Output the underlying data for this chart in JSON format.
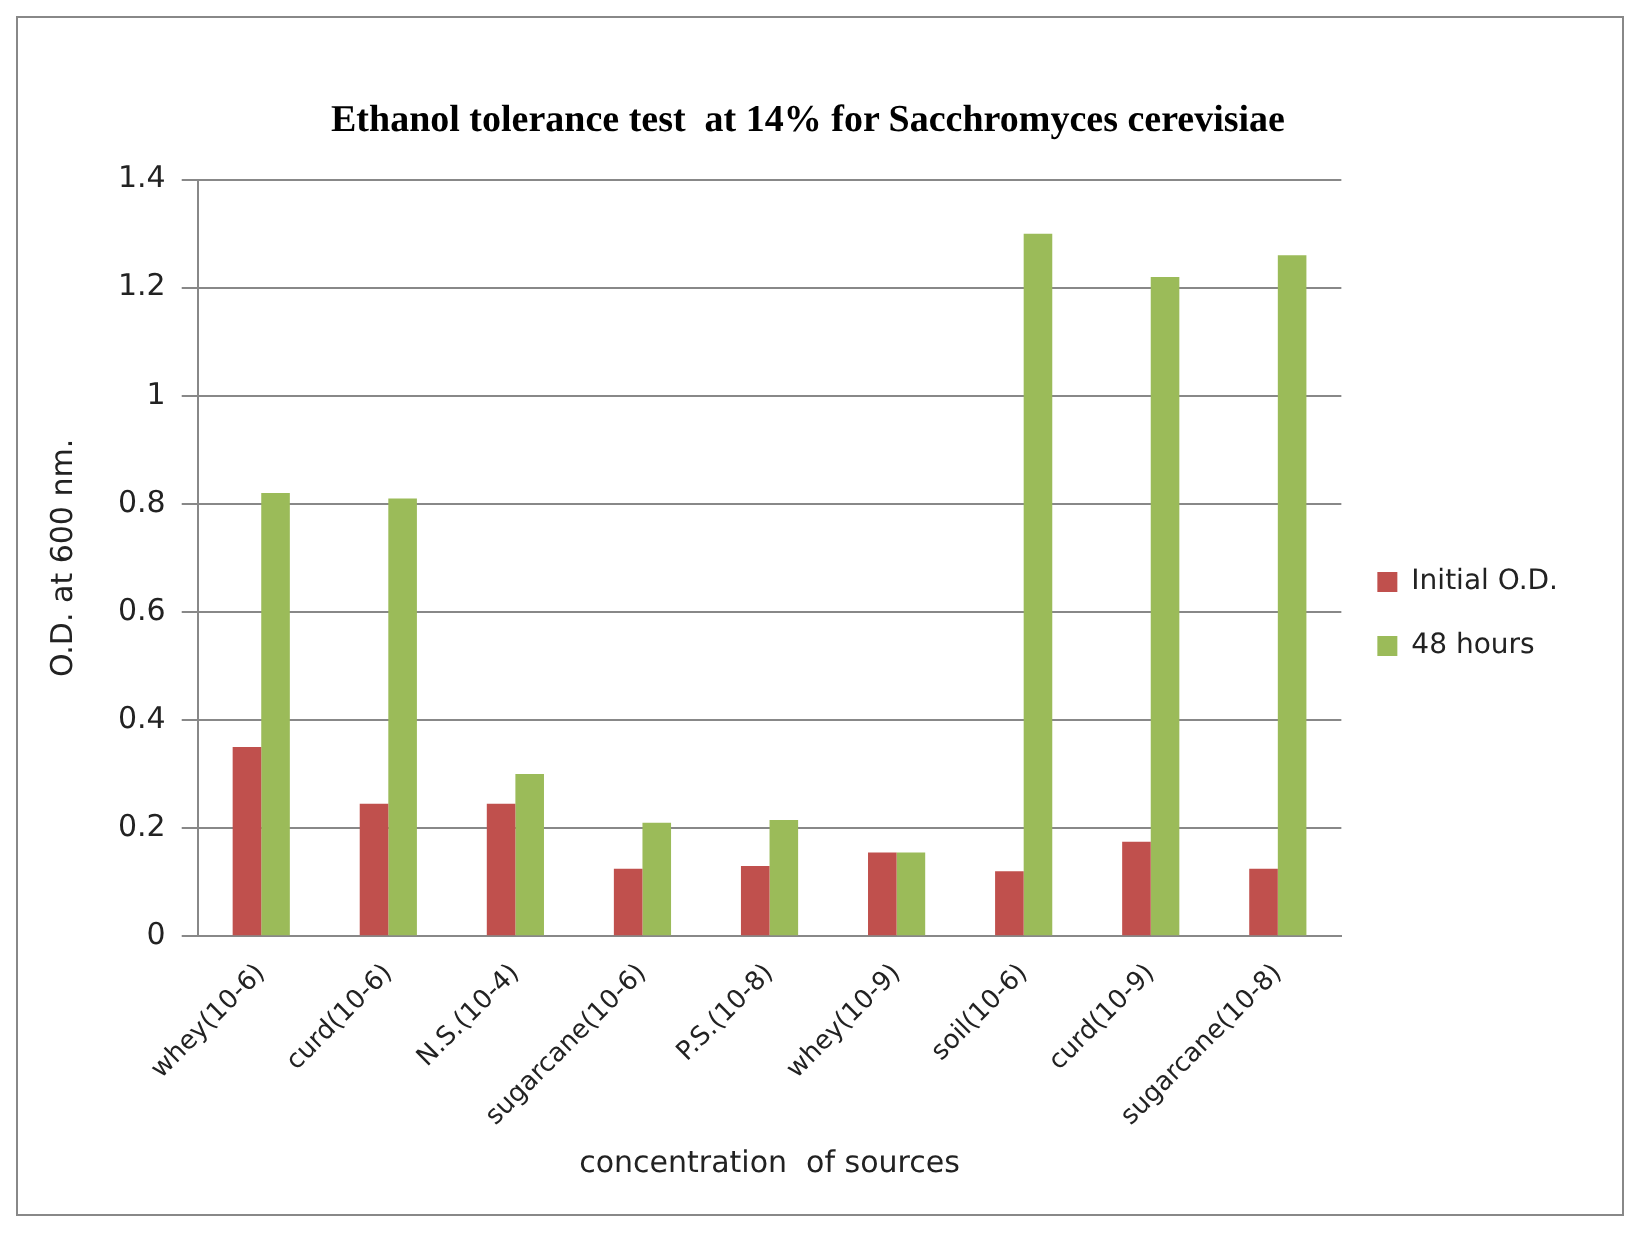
{
  "chart_data": {
    "type": "bar",
    "title": "Ethanol tolerance test  at 14% for Sacchromyces cerevisiae",
    "xlabel": "concentration  of sources",
    "ylabel": "O.D. at 600 nm.",
    "categories": [
      "whey(10-6)",
      "curd(10-6)",
      "N.S.(10-4)",
      "sugarcane(10-6)",
      "P.S.(10-8)",
      "whey(10-9)",
      "soil(10-6)",
      "curd(10-9)",
      "sugarcane(10-8)"
    ],
    "series": [
      {
        "name": "Initial O.D.",
        "color": "#c0504d",
        "values": [
          0.35,
          0.245,
          0.245,
          0.125,
          0.13,
          0.155,
          0.12,
          0.175,
          0.125
        ]
      },
      {
        "name": "48 hours",
        "color": "#9bbb59",
        "values": [
          0.82,
          0.81,
          0.3,
          0.21,
          0.215,
          0.155,
          1.3,
          1.22,
          1.26
        ]
      }
    ],
    "ylim": [
      0,
      1.4
    ],
    "yticks": [
      0,
      0.2,
      0.4,
      0.6,
      0.8,
      1,
      1.2,
      1.4
    ],
    "grid": "y",
    "legend": "right"
  }
}
